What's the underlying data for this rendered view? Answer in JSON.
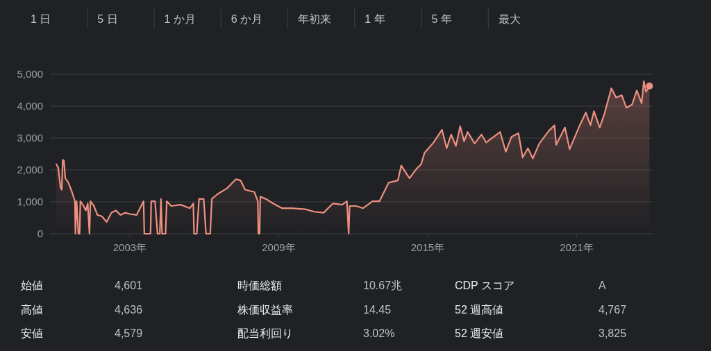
{
  "chart_data": [
    {
      "type": "other",
      "annotations": [
        "1 日",
        "5 日",
        "1 か月",
        "6 か月",
        "年初来",
        "1 年",
        "5 年",
        "最大"
      ]
    },
    {
      "type": "area",
      "grid": "y",
      "xlim": [
        "1999-10-15",
        "2024-01-25"
      ],
      "ylim": [
        0,
        5000
      ],
      "xticks": [
        {
          "value": "2003-01-01",
          "label": "2003年"
        },
        {
          "value": "2009-01-01",
          "label": "2009年"
        },
        {
          "value": "2015-01-01",
          "label": "2015年"
        },
        {
          "value": "2021-01-01",
          "label": "2021年"
        }
      ],
      "yticks": [
        0,
        {
          "value": 1000,
          "label": "1,000"
        },
        {
          "value": 2000,
          "label": "2,000"
        },
        {
          "value": 3000,
          "label": "3,000"
        },
        {
          "value": 4000,
          "label": "4,000"
        },
        {
          "value": 5000,
          "label": "5,000"
        }
      ],
      "x": [
        "2000-01-16",
        "2000-02-14",
        "2000-03-18",
        "2000-04-05",
        "2000-04-20",
        "2000-05-08",
        "2000-05-27",
        "2000-07-13",
        "2000-09-02",
        "2000-10-16",
        "2000-10-23",
        "2000-11-10",
        "2000-12-06",
        "2000-12-24",
        "2001-01-04",
        "2001-02-20",
        "2001-03-25",
        "2001-04-22",
        "2001-05-18",
        "2001-06-01",
        "2001-07-23",
        "2001-09-12",
        "2001-11-16",
        "2002-01-26",
        "2002-04-05",
        "2002-06-10",
        "2002-08-18",
        "2002-10-25",
        "2003-01-01",
        "2003-04-12",
        "2003-07-23",
        "2003-08-03",
        "2003-09-12",
        "2003-11-02",
        "2003-11-13",
        "2004-01-08",
        "2004-02-13",
        "2004-03-18",
        "2004-04-04",
        "2004-04-20",
        "2004-06-10",
        "2004-06-28",
        "2004-09-02",
        "2005-01-19",
        "2005-06-03",
        "2005-07-24",
        "2005-08-04",
        "2005-09-13",
        "2005-10-16",
        "2005-12-24",
        "2006-01-27",
        "2006-03-30",
        "2006-04-22",
        "2006-07-13",
        "2006-11-29",
        "2007-04-13",
        "2007-06-20",
        "2007-08-25",
        "2008-01-08",
        "2008-02-28",
        "2008-03-07",
        "2008-03-25",
        "2008-04-05",
        "2008-06-28",
        "2008-10-09",
        "2009-02-20",
        "2009-07-05",
        "2010-01-26",
        "2010-06-10",
        "2010-10-23",
        "2011-03-10",
        "2011-07-23",
        "2011-10-01",
        "2011-10-27",
        "2011-11-10",
        "2012-02-14",
        "2012-05-26",
        "2012-10-12",
        "2013-01-22",
        "2013-06-06",
        "2013-10-19",
        "2013-12-09",
        "2014-04-08",
        "2014-07-19",
        "2014-09-27",
        "2014-11-17",
        "2015-03-18",
        "2015-07-31",
        "2015-10-08",
        "2015-12-13",
        "2016-02-21",
        "2016-04-23",
        "2016-06-21",
        "2016-08-11",
        "2016-11-22",
        "2017-03-03",
        "2017-05-12",
        "2017-07-17",
        "2017-12-02",
        "2018-02-24",
        "2018-05-19",
        "2018-08-29",
        "2018-10-30",
        "2019-01-15",
        "2019-03-29",
        "2019-07-02",
        "2019-11-17",
        "2020-02-10",
        "2020-03-06",
        "2020-07-13",
        "2020-09-20",
        "2021-02-02",
        "2021-05-16",
        "2021-07-24",
        "2021-09-13",
        "2021-12-07",
        "2022-02-14",
        "2022-05-27",
        "2022-08-04",
        "2022-10-27",
        "2023-01-04",
        "2023-03-28",
        "2023-06-06",
        "2023-08-15",
        "2023-09-17",
        "2023-10-19",
        "2023-12-09"
      ],
      "series": [
        {
          "color": "#ee9080",
          "values": [
            2180,
            2070,
            1450,
            1380,
            2320,
            2280,
            1740,
            1600,
            1310,
            1020,
            0,
            1020,
            0,
            0,
            1020,
            870,
            730,
            950,
            0,
            1020,
            870,
            590,
            550,
            370,
            660,
            730,
            590,
            660,
            620,
            590,
            1020,
            0,
            0,
            0,
            1020,
            1020,
            0,
            0,
            1090,
            0,
            0,
            1020,
            870,
            910,
            800,
            950,
            0,
            0,
            1090,
            1090,
            0,
            0,
            1090,
            1240,
            1420,
            1710,
            1670,
            1380,
            1310,
            1020,
            0,
            0,
            1160,
            1090,
            950,
            800,
            800,
            770,
            690,
            660,
            950,
            910,
            1020,
            0,
            870,
            870,
            800,
            1020,
            1020,
            1600,
            1670,
            2140,
            1740,
            2030,
            2180,
            2540,
            2830,
            3260,
            2680,
            3110,
            2750,
            3370,
            2900,
            3190,
            2830,
            3110,
            2860,
            2970,
            3190,
            2570,
            3040,
            3150,
            2390,
            2680,
            2360,
            2830,
            3220,
            3400,
            2790,
            3330,
            2650,
            3330,
            3800,
            3400,
            3840,
            3330,
            3760,
            4560,
            4270,
            4340,
            3950,
            4050,
            4490,
            4090,
            4780,
            4450,
            4630
          ]
        }
      ]
    },
    {
      "type": "other",
      "annotations": [
        "始値",
        "4,601",
        "時価総額",
        "10.67兆",
        "CDP スコア",
        "A",
        "高値",
        "4,636",
        "株価収益率",
        "14.45",
        "52 週高値",
        "4,767",
        "安値",
        "4,579",
        "配当利回り",
        "3.02%",
        "52 週安値",
        "3,825"
      ]
    }
  ]
}
